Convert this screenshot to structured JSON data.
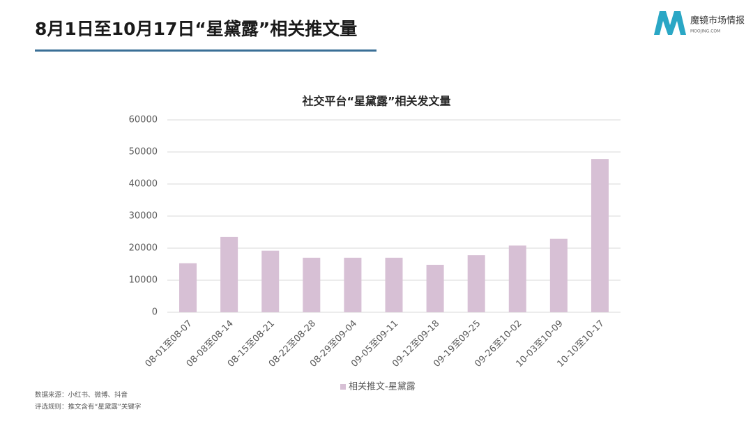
{
  "header": {
    "title": "8月1日至10月17日“星黛露”相关推文量"
  },
  "logo": {
    "name": "魔镜市场情报",
    "site": "MOOJING.COM"
  },
  "notes": [
    "数据来源：小红书、微博、抖音",
    "评选规则：推文含有“星黛露”关键字"
  ],
  "chart_data": {
    "type": "bar",
    "title": "社交平台“星黛露”相关发文量",
    "categories": [
      "08-01至08-07",
      "08-08至08-14",
      "08-15至08-21",
      "08-22至08-28",
      "08-29至09-04",
      "09-05至09-11",
      "09-12至09-18",
      "09-19至09-25",
      "09-26至10-02",
      "10-03至10-09",
      "10-10至10-17"
    ],
    "series": [
      {
        "name": "相关推文-星黛露",
        "color": "#d7c0d5",
        "values": [
          15300,
          23500,
          19200,
          17000,
          17000,
          17000,
          14800,
          17800,
          20800,
          22900,
          47800
        ]
      }
    ],
    "ylim": [
      0,
      60000
    ],
    "yticks": [
      0,
      10000,
      20000,
      30000,
      40000,
      50000,
      60000
    ],
    "grid": true,
    "legend": "bottom"
  }
}
